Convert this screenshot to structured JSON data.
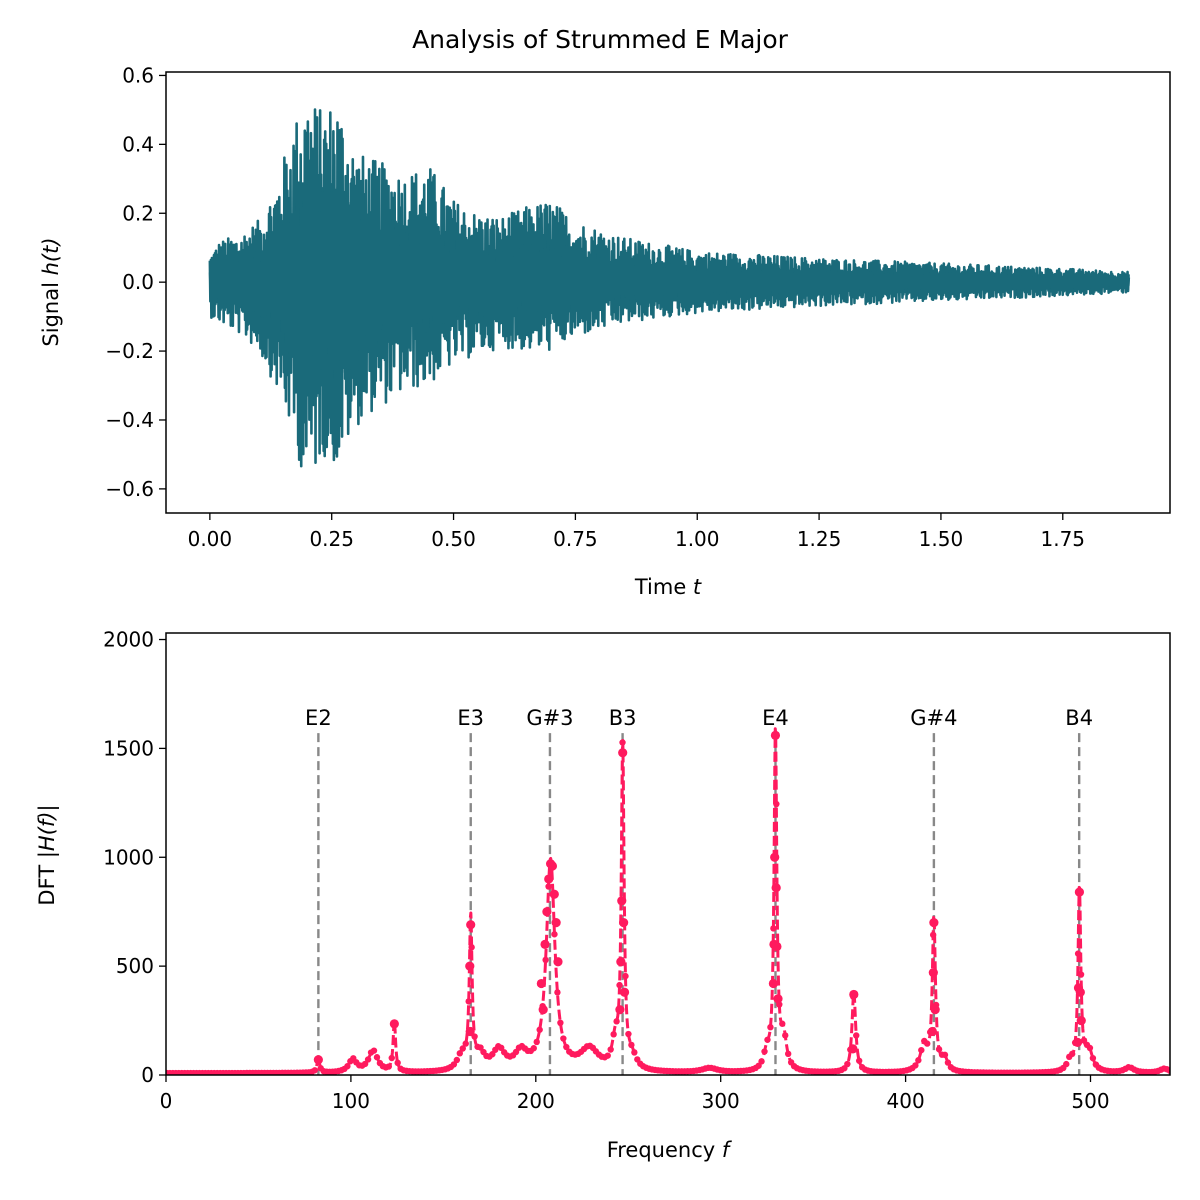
{
  "figure": {
    "title": "Analysis of Strummed E Major"
  },
  "colors": {
    "signal": "#1a6a7a",
    "spectrum": "#ff1a5e",
    "note_lines": "#888888"
  },
  "chart_data": [
    {
      "type": "line",
      "xlabel_plain": "Time ",
      "xlabel_italic": "t",
      "ylabel_plain": "Signal ",
      "ylabel_italic": "h(t)",
      "xlim": [
        -0.09,
        1.97
      ],
      "ylim": [
        -0.67,
        0.61
      ],
      "xticks": [
        0.0,
        0.25,
        0.5,
        0.75,
        1.0,
        1.25,
        1.5,
        1.75
      ],
      "xtick_labels": [
        "0.00",
        "0.25",
        "0.50",
        "0.75",
        "1.00",
        "1.25",
        "1.50",
        "1.75"
      ],
      "yticks": [
        -0.6,
        -0.4,
        -0.2,
        0.0,
        0.2,
        0.4,
        0.6
      ],
      "ytick_labels": [
        "−0.6",
        "−0.4",
        "−0.2",
        "0.0",
        "0.2",
        "0.4",
        "0.6"
      ],
      "duration": 1.885,
      "envelope_upper": [
        [
          0.0,
          0.08
        ],
        [
          0.02,
          0.12
        ],
        [
          0.06,
          0.14
        ],
        [
          0.1,
          0.18
        ],
        [
          0.14,
          0.3
        ],
        [
          0.17,
          0.46
        ],
        [
          0.2,
          0.55
        ],
        [
          0.23,
          0.5
        ],
        [
          0.26,
          0.54
        ],
        [
          0.3,
          0.38
        ],
        [
          0.33,
          0.36
        ],
        [
          0.4,
          0.32
        ],
        [
          0.45,
          0.34
        ],
        [
          0.5,
          0.24
        ],
        [
          0.55,
          0.2
        ],
        [
          0.6,
          0.19
        ],
        [
          0.65,
          0.22
        ],
        [
          0.7,
          0.24
        ],
        [
          0.75,
          0.18
        ],
        [
          0.85,
          0.13
        ],
        [
          1.0,
          0.09
        ],
        [
          1.25,
          0.07
        ],
        [
          1.5,
          0.055
        ],
        [
          1.75,
          0.04
        ],
        [
          1.885,
          0.03
        ]
      ],
      "envelope_lower": [
        [
          0.0,
          -0.1
        ],
        [
          0.02,
          -0.12
        ],
        [
          0.06,
          -0.15
        ],
        [
          0.1,
          -0.2
        ],
        [
          0.14,
          -0.32
        ],
        [
          0.17,
          -0.45
        ],
        [
          0.2,
          -0.61
        ],
        [
          0.23,
          -0.5
        ],
        [
          0.26,
          -0.54
        ],
        [
          0.3,
          -0.42
        ],
        [
          0.33,
          -0.38
        ],
        [
          0.4,
          -0.32
        ],
        [
          0.45,
          -0.3
        ],
        [
          0.5,
          -0.24
        ],
        [
          0.55,
          -0.21
        ],
        [
          0.6,
          -0.19
        ],
        [
          0.65,
          -0.2
        ],
        [
          0.7,
          -0.2
        ],
        [
          0.75,
          -0.16
        ],
        [
          0.85,
          -0.12
        ],
        [
          1.0,
          -0.09
        ],
        [
          1.25,
          -0.07
        ],
        [
          1.5,
          -0.055
        ],
        [
          1.75,
          -0.04
        ],
        [
          1.885,
          -0.03
        ]
      ]
    },
    {
      "type": "line",
      "xlabel_plain": "Frequency ",
      "xlabel_italic": "f",
      "ylabel_plain": "DFT |",
      "ylabel_italic": "H(f)",
      "ylabel_tail": "|",
      "xlim": [
        0,
        543
      ],
      "ylim": [
        0,
        2030
      ],
      "xticks": [
        0,
        100,
        200,
        300,
        400,
        500
      ],
      "xtick_labels": [
        "0",
        "100",
        "200",
        "300",
        "400",
        "500"
      ],
      "yticks": [
        0,
        500,
        1000,
        1500,
        2000
      ],
      "ytick_labels": [
        "0",
        "500",
        "1000",
        "1500",
        "2000"
      ],
      "baseline": 8,
      "peaks": [
        {
          "f": 82.4,
          "height": 70,
          "width": 0.8
        },
        {
          "f": 101,
          "height": 60,
          "width": 2.5
        },
        {
          "f": 112,
          "height": 100,
          "width": 3
        },
        {
          "f": 123.5,
          "height": 235,
          "width": 0.8
        },
        {
          "f": 164.8,
          "height": 690,
          "width": 0.9
        },
        {
          "f": 160,
          "height": 70,
          "width": 3
        },
        {
          "f": 170,
          "height": 70,
          "width": 3
        },
        {
          "f": 180,
          "height": 95,
          "width": 4
        },
        {
          "f": 192,
          "height": 80,
          "width": 4
        },
        {
          "f": 208,
          "height": 970,
          "width": 2.8
        },
        {
          "f": 229,
          "height": 100,
          "width": 6
        },
        {
          "f": 247,
          "height": 1480,
          "width": 0.9
        },
        {
          "f": 243,
          "height": 120,
          "width": 2
        },
        {
          "f": 252,
          "height": 60,
          "width": 3
        },
        {
          "f": 294,
          "height": 20,
          "width": 5
        },
        {
          "f": 329.6,
          "height": 1560,
          "width": 0.9
        },
        {
          "f": 325,
          "height": 80,
          "width": 2
        },
        {
          "f": 334,
          "height": 150,
          "width": 2
        },
        {
          "f": 372,
          "height": 370,
          "width": 1.2
        },
        {
          "f": 415.3,
          "height": 700,
          "width": 1
        },
        {
          "f": 410,
          "height": 120,
          "width": 2.5
        },
        {
          "f": 421,
          "height": 60,
          "width": 2
        },
        {
          "f": 494,
          "height": 840,
          "width": 0.9
        },
        {
          "f": 489,
          "height": 50,
          "width": 2
        },
        {
          "f": 499,
          "height": 100,
          "width": 2.5
        },
        {
          "f": 521,
          "height": 25,
          "width": 3
        },
        {
          "f": 540,
          "height": 20,
          "width": 3
        }
      ],
      "markers": [
        [
          82.4,
          70
        ],
        [
          123.5,
          235
        ],
        [
          164.8,
          690
        ],
        [
          164.3,
          500
        ],
        [
          164.5,
          200
        ],
        [
          205,
          600
        ],
        [
          206,
          750
        ],
        [
          207,
          900
        ],
        [
          208,
          970
        ],
        [
          209,
          960
        ],
        [
          210,
          830
        ],
        [
          211,
          700
        ],
        [
          212,
          520
        ],
        [
          203,
          420
        ],
        [
          204,
          300
        ],
        [
          247,
          1480
        ],
        [
          246.5,
          800
        ],
        [
          247.5,
          700
        ],
        [
          246,
          520
        ],
        [
          248,
          380
        ],
        [
          245.5,
          300
        ],
        [
          329.6,
          1560
        ],
        [
          329.2,
          1000
        ],
        [
          330,
          860
        ],
        [
          328.8,
          600
        ],
        [
          330.4,
          590
        ],
        [
          331,
          350
        ],
        [
          328.5,
          420
        ],
        [
          372,
          370
        ],
        [
          371.5,
          120
        ],
        [
          415.3,
          700
        ],
        [
          415,
          470
        ],
        [
          416,
          300
        ],
        [
          414.5,
          200
        ],
        [
          494,
          840
        ],
        [
          493.5,
          400
        ],
        [
          494.5,
          380
        ],
        [
          495,
          250
        ],
        [
          493,
          150
        ]
      ],
      "notes": [
        {
          "label": "E2",
          "f": 82.41
        },
        {
          "label": "E3",
          "f": 164.81
        },
        {
          "label": "G#3",
          "f": 207.65
        },
        {
          "label": "B3",
          "f": 246.94
        },
        {
          "label": "E4",
          "f": 329.63
        },
        {
          "label": "G#4",
          "f": 415.3
        },
        {
          "label": "B4",
          "f": 493.88
        }
      ],
      "note_line_top": 1570,
      "note_label_y": 1640
    }
  ]
}
